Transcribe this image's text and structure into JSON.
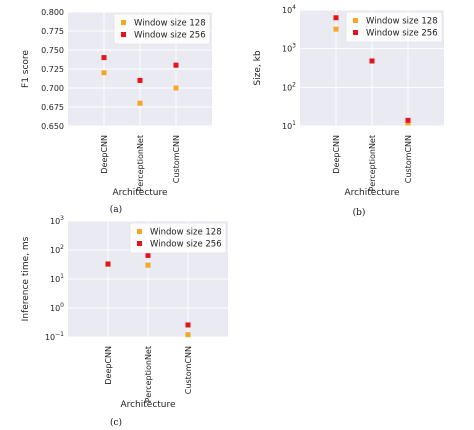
{
  "chart_data": [
    {
      "type": "scatter",
      "caption": "(a)",
      "ylabel": "F1 score",
      "xlabel": "Architecture",
      "yscale": "linear",
      "ylim": [
        0.65,
        0.8
      ],
      "yticks": [
        "0.650",
        "0.675",
        "0.700",
        "0.725",
        "0.750",
        "0.775",
        "0.800"
      ],
      "categories": [
        "DeepCNN",
        "PerceptionNet",
        "CustomCNN"
      ],
      "series": [
        {
          "name": "Window size 128",
          "color": "#f5a623",
          "values": [
            0.72,
            0.68,
            0.7
          ]
        },
        {
          "name": "Window size 256",
          "color": "#e3141b",
          "values": [
            0.74,
            0.71,
            0.73
          ]
        }
      ],
      "grid": true,
      "legend": "top-right"
    },
    {
      "type": "scatter",
      "caption": "(b)",
      "ylabel": "Size, kb",
      "xlabel": "Architecture",
      "yscale": "log",
      "ylim": [
        10,
        10000
      ],
      "yticks": [
        {
          "base": "10",
          "exp": "1"
        },
        {
          "base": "10",
          "exp": "2"
        },
        {
          "base": "10",
          "exp": "3"
        },
        {
          "base": "10",
          "exp": "4"
        }
      ],
      "categories": [
        "DeepCNN",
        "PerceptionNet",
        "CustomCNN"
      ],
      "series": [
        {
          "name": "Window size 128",
          "color": "#f5a623",
          "values": [
            3200,
            480,
            12
          ]
        },
        {
          "name": "Window size 256",
          "color": "#e3141b",
          "values": [
            6300,
            480,
            14
          ]
        }
      ],
      "grid": true,
      "legend": "top-right"
    },
    {
      "type": "scatter",
      "caption": "(c)",
      "ylabel": "Inference time, ms",
      "xlabel": "Architecture",
      "yscale": "log",
      "ylim": [
        0.1,
        1000
      ],
      "yticks": [
        {
          "base": "10",
          "exp": "−1"
        },
        {
          "base": "10",
          "exp": "0"
        },
        {
          "base": "10",
          "exp": "1"
        },
        {
          "base": "10",
          "exp": "2"
        },
        {
          "base": "10",
          "exp": "3"
        }
      ],
      "categories": [
        "DeepCNN",
        "PerceptionNet",
        "CustomCNN"
      ],
      "series": [
        {
          "name": "Window size 128",
          "color": "#f5a623",
          "values": [
            32,
            30,
            0.12
          ]
        },
        {
          "name": "Window size 256",
          "color": "#e3141b",
          "values": [
            33,
            65,
            0.26
          ]
        }
      ],
      "grid": true,
      "legend": "top-right"
    }
  ]
}
